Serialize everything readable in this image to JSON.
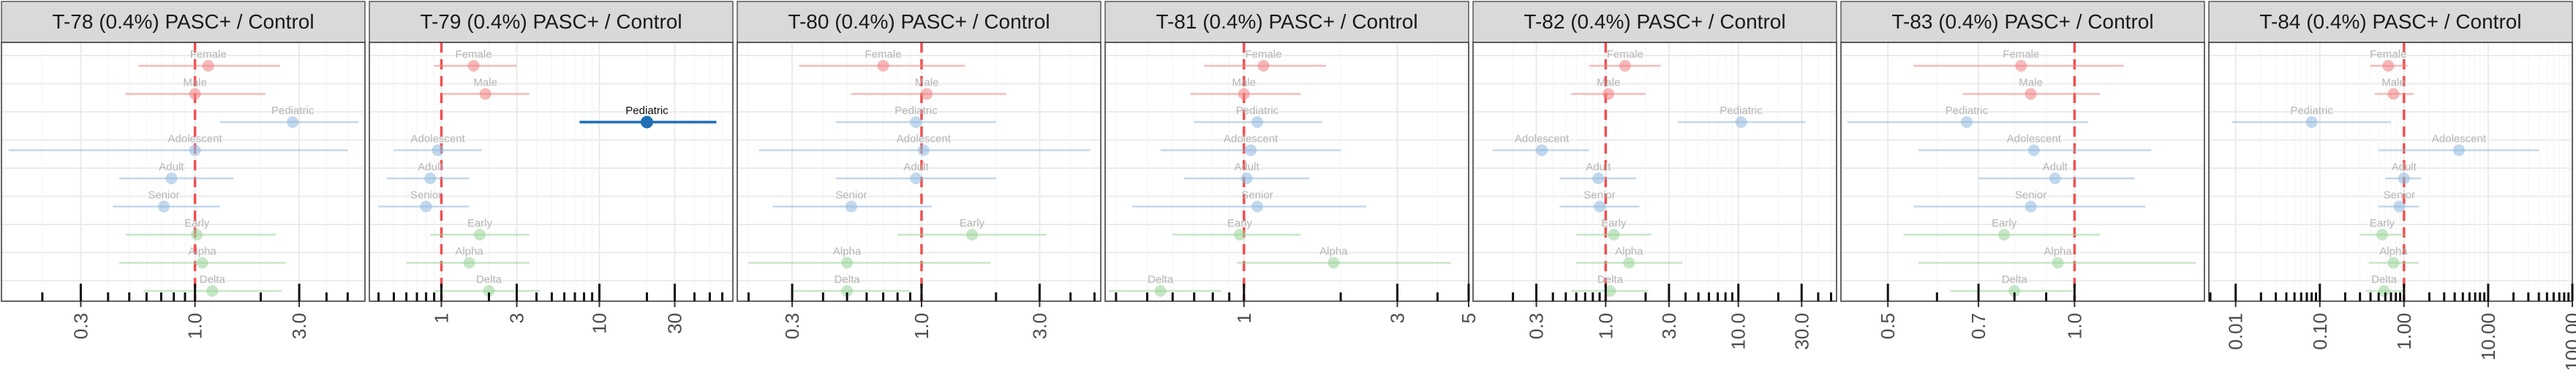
{
  "chart_data": [
    {
      "type": "forest",
      "title": "T-78 (0.4%) PASC+ / Control",
      "scale": "log",
      "xlim": [
        0.13,
        6.0
      ],
      "reference_line": 1,
      "tick_labels": [
        "0.3",
        "1.0",
        "3.0"
      ],
      "ticks": [
        0.3,
        1.0,
        3.0
      ],
      "minor_ticks": [
        0.2,
        0.4,
        0.5,
        0.6,
        0.7,
        0.8,
        0.9,
        2,
        4,
        5
      ],
      "rows": [
        {
          "label": "Female",
          "group": "sex",
          "est": 1.15,
          "lo": 0.55,
          "hi": 2.45,
          "bold": false
        },
        {
          "label": "Male",
          "group": "sex",
          "est": 1.0,
          "lo": 0.48,
          "hi": 2.1,
          "bold": false
        },
        {
          "label": "Pediatric",
          "group": "age",
          "est": 2.8,
          "lo": 1.3,
          "hi": 5.6,
          "bold": false
        },
        {
          "label": "Adolescent",
          "group": "age",
          "est": 1.0,
          "lo": 0.14,
          "hi": 5.0,
          "bold": false
        },
        {
          "label": "Adult",
          "group": "age",
          "est": 0.78,
          "lo": 0.45,
          "hi": 1.5,
          "bold": false
        },
        {
          "label": "Senior",
          "group": "age",
          "est": 0.72,
          "lo": 0.42,
          "hi": 1.3,
          "bold": false
        },
        {
          "label": "Early",
          "group": "variant",
          "est": 1.02,
          "lo": 0.48,
          "hi": 2.35,
          "bold": false
        },
        {
          "label": "Alpha",
          "group": "variant",
          "est": 1.08,
          "lo": 0.45,
          "hi": 2.6,
          "bold": false
        },
        {
          "label": "Delta",
          "group": "variant",
          "est": 1.2,
          "lo": 0.58,
          "hi": 2.5,
          "bold": false
        }
      ]
    },
    {
      "type": "forest",
      "title": "T-79 (0.4%) PASC+ / Control",
      "scale": "log",
      "xlim": [
        0.35,
        70
      ],
      "reference_line": 1,
      "tick_labels": [
        "1",
        "3",
        "10",
        "30"
      ],
      "ticks": [
        1,
        3,
        10,
        30
      ],
      "minor_ticks": [
        0.4,
        0.5,
        0.6,
        0.7,
        0.8,
        0.9,
        2,
        4,
        5,
        6,
        7,
        8,
        9,
        20,
        40,
        50,
        60
      ],
      "rows": [
        {
          "label": "Female",
          "group": "sex",
          "est": 1.6,
          "lo": 0.9,
          "hi": 3.0,
          "bold": false
        },
        {
          "label": "Male",
          "group": "sex",
          "est": 1.9,
          "lo": 1.0,
          "hi": 3.6,
          "bold": false
        },
        {
          "label": "Pediatric",
          "group": "age",
          "est": 20,
          "lo": 7.5,
          "hi": 55,
          "bold": true
        },
        {
          "label": "Adolescent",
          "group": "age",
          "est": 0.95,
          "lo": 0.5,
          "hi": 1.8,
          "bold": false
        },
        {
          "label": "Adult",
          "group": "age",
          "est": 0.85,
          "lo": 0.45,
          "hi": 1.5,
          "bold": false
        },
        {
          "label": "Senior",
          "group": "age",
          "est": 0.8,
          "lo": 0.4,
          "hi": 1.5,
          "bold": false
        },
        {
          "label": "Early",
          "group": "variant",
          "est": 1.75,
          "lo": 0.85,
          "hi": 3.6,
          "bold": false
        },
        {
          "label": "Alpha",
          "group": "variant",
          "est": 1.5,
          "lo": 0.6,
          "hi": 3.6,
          "bold": false
        },
        {
          "label": "Delta",
          "group": "variant",
          "est": 2.0,
          "lo": 0.9,
          "hi": 4.2,
          "bold": false
        }
      ]
    },
    {
      "type": "forest",
      "title": "T-80 (0.4%) PASC+ / Control",
      "scale": "log",
      "xlim": [
        0.18,
        5.3
      ],
      "reference_line": 1,
      "tick_labels": [
        "0.3",
        "1.0",
        "3.0"
      ],
      "ticks": [
        0.3,
        1.0,
        3.0
      ],
      "minor_ticks": [
        0.2,
        0.4,
        0.5,
        0.6,
        0.7,
        0.8,
        0.9,
        2,
        4,
        5
      ],
      "rows": [
        {
          "label": "Female",
          "group": "sex",
          "est": 0.7,
          "lo": 0.32,
          "hi": 1.5,
          "bold": false
        },
        {
          "label": "Male",
          "group": "sex",
          "est": 1.05,
          "lo": 0.52,
          "hi": 2.2,
          "bold": false
        },
        {
          "label": "Pediatric",
          "group": "age",
          "est": 0.95,
          "lo": 0.45,
          "hi": 2.0,
          "bold": false
        },
        {
          "label": "Adolescent",
          "group": "age",
          "est": 1.02,
          "lo": 0.22,
          "hi": 4.8,
          "bold": false
        },
        {
          "label": "Adult",
          "group": "age",
          "est": 0.95,
          "lo": 0.45,
          "hi": 2.0,
          "bold": false
        },
        {
          "label": "Senior",
          "group": "age",
          "est": 0.52,
          "lo": 0.25,
          "hi": 1.1,
          "bold": false
        },
        {
          "label": "Early",
          "group": "variant",
          "est": 1.6,
          "lo": 0.8,
          "hi": 3.2,
          "bold": false
        },
        {
          "label": "Alpha",
          "group": "variant",
          "est": 0.5,
          "lo": 0.2,
          "hi": 1.9,
          "bold": false
        },
        {
          "label": "Delta",
          "group": "variant",
          "est": 0.5,
          "lo": 0.3,
          "hi": 0.9,
          "bold": false
        }
      ]
    },
    {
      "type": "forest",
      "title": "T-81 (0.4%) PASC+ / Control",
      "scale": "log",
      "xlim": [
        0.37,
        5.0
      ],
      "reference_line": 1,
      "tick_labels": [
        "1",
        "3",
        "5"
      ],
      "ticks": [
        1,
        3,
        5
      ],
      "minor_ticks": [
        0.4,
        0.5,
        0.6,
        0.7,
        0.8,
        0.9,
        2,
        4
      ],
      "rows": [
        {
          "label": "Female",
          "group": "sex",
          "est": 1.15,
          "lo": 0.75,
          "hi": 1.8,
          "bold": false
        },
        {
          "label": "Male",
          "group": "sex",
          "est": 1.0,
          "lo": 0.68,
          "hi": 1.5,
          "bold": false
        },
        {
          "label": "Pediatric",
          "group": "age",
          "est": 1.1,
          "lo": 0.7,
          "hi": 1.75,
          "bold": false
        },
        {
          "label": "Adolescent",
          "group": "age",
          "est": 1.05,
          "lo": 0.55,
          "hi": 2.0,
          "bold": false
        },
        {
          "label": "Adult",
          "group": "age",
          "est": 1.02,
          "lo": 0.65,
          "hi": 1.6,
          "bold": false
        },
        {
          "label": "Senior",
          "group": "age",
          "est": 1.1,
          "lo": 0.45,
          "hi": 2.4,
          "bold": false
        },
        {
          "label": "Early",
          "group": "variant",
          "est": 0.97,
          "lo": 0.6,
          "hi": 1.5,
          "bold": false
        },
        {
          "label": "Alpha",
          "group": "variant",
          "est": 1.9,
          "lo": 0.95,
          "hi": 4.4,
          "bold": false
        },
        {
          "label": "Delta",
          "group": "variant",
          "est": 0.55,
          "lo": 0.38,
          "hi": 0.85,
          "bold": false
        }
      ]
    },
    {
      "type": "forest",
      "title": "T-82 (0.4%) PASC+ / Control",
      "scale": "log",
      "xlim": [
        0.1,
        55
      ],
      "reference_line": 1,
      "tick_labels": [
        "0.3",
        "1.0",
        "3.0",
        "10.0",
        "30.0"
      ],
      "ticks": [
        0.3,
        1.0,
        3.0,
        10.0,
        30.0
      ],
      "minor_ticks": [
        0.2,
        0.4,
        0.5,
        0.6,
        0.7,
        0.8,
        0.9,
        2,
        4,
        5,
        6,
        7,
        8,
        9,
        20,
        40,
        50
      ],
      "rows": [
        {
          "label": "Female",
          "group": "sex",
          "est": 1.4,
          "lo": 0.75,
          "hi": 2.6,
          "bold": false
        },
        {
          "label": "Male",
          "group": "sex",
          "est": 1.05,
          "lo": 0.55,
          "hi": 2.0,
          "bold": false
        },
        {
          "label": "Pediatric",
          "group": "age",
          "est": 10.5,
          "lo": 3.5,
          "hi": 32,
          "bold": false
        },
        {
          "label": "Adolescent",
          "group": "age",
          "est": 0.33,
          "lo": 0.14,
          "hi": 0.75,
          "bold": false
        },
        {
          "label": "Adult",
          "group": "age",
          "est": 0.88,
          "lo": 0.45,
          "hi": 1.7,
          "bold": false
        },
        {
          "label": "Senior",
          "group": "age",
          "est": 0.9,
          "lo": 0.45,
          "hi": 1.8,
          "bold": false
        },
        {
          "label": "Early",
          "group": "variant",
          "est": 1.15,
          "lo": 0.6,
          "hi": 2.2,
          "bold": false
        },
        {
          "label": "Alpha",
          "group": "variant",
          "est": 1.5,
          "lo": 0.6,
          "hi": 3.8,
          "bold": false
        },
        {
          "label": "Delta",
          "group": "variant",
          "est": 1.08,
          "lo": 0.55,
          "hi": 2.1,
          "bold": false
        }
      ]
    },
    {
      "type": "forest",
      "title": "T-83 (0.4%) PASC+ / Control",
      "scale": "log",
      "xlim": [
        0.42,
        1.62
      ],
      "reference_line": 1,
      "tick_labels": [
        "0.5",
        "0.7",
        "1.0"
      ],
      "ticks": [
        0.5,
        0.7,
        1.0
      ],
      "minor_ticks": [
        0.6,
        0.8,
        0.9
      ],
      "rows": [
        {
          "label": "Female",
          "group": "sex",
          "est": 0.82,
          "lo": 0.55,
          "hi": 1.2,
          "bold": false
        },
        {
          "label": "Male",
          "group": "sex",
          "est": 0.85,
          "lo": 0.66,
          "hi": 1.1,
          "bold": false
        },
        {
          "label": "Pediatric",
          "group": "age",
          "est": 0.67,
          "lo": 0.43,
          "hi": 1.05,
          "bold": false
        },
        {
          "label": "Adolescent",
          "group": "age",
          "est": 0.86,
          "lo": 0.56,
          "hi": 1.33,
          "bold": false
        },
        {
          "label": "Adult",
          "group": "age",
          "est": 0.93,
          "lo": 0.7,
          "hi": 1.25,
          "bold": false
        },
        {
          "label": "Senior",
          "group": "age",
          "est": 0.85,
          "lo": 0.55,
          "hi": 1.3,
          "bold": false
        },
        {
          "label": "Early",
          "group": "variant",
          "est": 0.77,
          "lo": 0.53,
          "hi": 1.1,
          "bold": false
        },
        {
          "label": "Alpha",
          "group": "variant",
          "est": 0.94,
          "lo": 0.56,
          "hi": 1.57,
          "bold": false
        },
        {
          "label": "Delta",
          "group": "variant",
          "est": 0.8,
          "lo": 0.63,
          "hi": 1.0,
          "bold": false
        }
      ]
    },
    {
      "type": "forest",
      "title": "T-84 (0.4%) PASC+ / Control",
      "scale": "log",
      "xlim": [
        0.0048,
        100
      ],
      "reference_line": 1,
      "tick_labels": [
        "0.01",
        "0.10",
        "1.00",
        "10.00",
        "100.00"
      ],
      "ticks": [
        0.01,
        0.1,
        1.0,
        10.0,
        100.0
      ],
      "minor_ticks": [
        0.005,
        0.02,
        0.03,
        0.04,
        0.05,
        0.06,
        0.07,
        0.08,
        0.09,
        0.2,
        0.3,
        0.4,
        0.5,
        0.6,
        0.7,
        0.8,
        0.9,
        2,
        3,
        4,
        5,
        6,
        7,
        8,
        9,
        20,
        30,
        40,
        50,
        60,
        70,
        80,
        90
      ],
      "rows": [
        {
          "label": "Female",
          "group": "sex",
          "est": 0.65,
          "lo": 0.4,
          "hi": 1.1,
          "bold": false
        },
        {
          "label": "Male",
          "group": "sex",
          "est": 0.75,
          "lo": 0.45,
          "hi": 1.3,
          "bold": false
        },
        {
          "label": "Pediatric",
          "group": "age",
          "est": 0.08,
          "lo": 0.009,
          "hi": 0.7,
          "bold": false
        },
        {
          "label": "Adolescent",
          "group": "age",
          "est": 4.5,
          "lo": 0.5,
          "hi": 40,
          "bold": false
        },
        {
          "label": "Adult",
          "group": "age",
          "est": 1.0,
          "lo": 0.6,
          "hi": 1.6,
          "bold": false
        },
        {
          "label": "Senior",
          "group": "age",
          "est": 0.88,
          "lo": 0.5,
          "hi": 1.5,
          "bold": false
        },
        {
          "label": "Early",
          "group": "variant",
          "est": 0.55,
          "lo": 0.3,
          "hi": 1.0,
          "bold": false
        },
        {
          "label": "Alpha",
          "group": "variant",
          "est": 0.75,
          "lo": 0.38,
          "hi": 1.5,
          "bold": false
        },
        {
          "label": "Delta",
          "group": "variant",
          "est": 0.58,
          "lo": 0.35,
          "hi": 1.0,
          "bold": false
        }
      ]
    }
  ],
  "colors": {
    "sex": "#f08080",
    "age": "#8fb8de",
    "variant": "#98d398",
    "bold": "#1f6fb4",
    "reference_line": "#f05050",
    "strip": "#d9d9d9",
    "grid": "#ebebeb",
    "label_faint": "#b5b5b5"
  }
}
